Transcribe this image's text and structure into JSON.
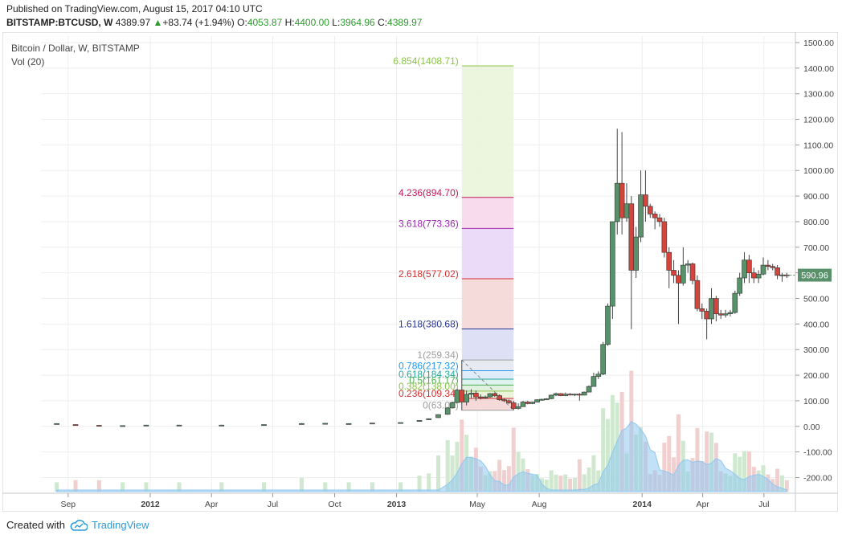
{
  "header": {
    "published": "Published on TradingView.com, August 15, 2017 04:10 UTC",
    "symbol": "BITSTAMP:BTCUSD, W",
    "price": "4389.97",
    "change_arrow": "▲",
    "change": "+83.74 (+1.94%)",
    "o_label": "O:",
    "o_value": "4053.87",
    "h_label": "H:",
    "h_value": "4400.00",
    "l_label": "L:",
    "l_value": "3964.96",
    "c_label": "C:",
    "c_value": "4389.97"
  },
  "legend": {
    "title": "Bitcoin / Dollar, W, BITSTAMP",
    "volume": "Vol (20)"
  },
  "last_price_tag": "590.96",
  "footer": {
    "created_with": "Created with",
    "brand": "TradingView"
  },
  "colors": {
    "up": "#58916a",
    "down": "#d3453c",
    "vol_up": "#cfe8cf",
    "vol_down": "#f2cfcf",
    "vol_ma": "#90c8f0",
    "axis_text": "#444444",
    "grid": "#eeeeee"
  },
  "chart_data": {
    "type": "candlestick",
    "title": "Bitcoin / Dollar, W, BITSTAMP",
    "y_axis": {
      "ticks": [
        1500,
        1400,
        1300,
        1200,
        1100,
        1000,
        900,
        800,
        700,
        600,
        500,
        400,
        300,
        200,
        100,
        0,
        -100,
        -200
      ],
      "tick_labels": [
        "1500.00",
        "1400.00",
        "1300.00",
        "1200.00",
        "1100.00",
        "1000.00",
        "900.00",
        "800.00",
        "700.00",
        "600.00",
        "500.00",
        "400.00",
        "300.00",
        "200.00",
        "100.00",
        "0.00",
        "-100.00",
        "-200.00"
      ],
      "range": [
        -255,
        1525
      ]
    },
    "x_axis": {
      "ticks": [
        {
          "label": "Sep",
          "date": "2011-09-01"
        },
        {
          "label": "2012",
          "date": "2012-01-01"
        },
        {
          "label": "Apr",
          "date": "2012-04-01"
        },
        {
          "label": "Jul",
          "date": "2012-07-01"
        },
        {
          "label": "Oct",
          "date": "2012-10-01"
        },
        {
          "label": "2013",
          "date": "2013-01-01"
        },
        {
          "label": "May",
          "date": "2013-05-01"
        },
        {
          "label": "Aug",
          "date": "2013-08-01"
        },
        {
          "label": "2014",
          "date": "2014-01-01"
        },
        {
          "label": "Apr",
          "date": "2014-04-01"
        },
        {
          "label": "Jul",
          "date": "2014-07-01"
        }
      ]
    },
    "fib_extension": {
      "start_date": "2013-04-08",
      "end_date": "2013-06-24",
      "levels": [
        {
          "label": "6.854(1408.71)",
          "value": 1408.71,
          "color": "#8bc34a",
          "fill": "#e9f5d8"
        },
        {
          "label": "4.236(894.70)",
          "value": 894.7,
          "color": "#c2185b",
          "fill": "#f7d6ea"
        },
        {
          "label": "3.618(773.36)",
          "value": 773.36,
          "color": "#9c27b0",
          "fill": "#e9d5f7"
        },
        {
          "label": "2.618(577.02)",
          "value": 577.02,
          "color": "#d32f2f",
          "fill": "#f5d5d5"
        },
        {
          "label": "1.618(380.68)",
          "value": 380.68,
          "color": "#283593",
          "fill": "#d8dcf5"
        },
        {
          "label": "1(259.34)",
          "value": 259.34,
          "color": "#9e9e9e",
          "fill": "#e3e6ee"
        },
        {
          "label": "0.786(217.32)",
          "value": 217.32,
          "color": "#2196f3",
          "fill": "#dbeaf7"
        },
        {
          "label": "0.618(184.34)",
          "value": 184.34,
          "color": "#26a69a",
          "fill": "#d8f0ec"
        },
        {
          "label": "0.5(161.17)",
          "value": 161.17,
          "color": "#4caf50",
          "fill": "#daf0d9"
        },
        {
          "label": "0.382(138.00)",
          "value": 138.0,
          "color": "#8bc34a",
          "fill": "#e6f2d4"
        },
        {
          "label": "0.236(109.34)",
          "value": 109.34,
          "color": "#d32f2f",
          "fill": "#f5d3d3"
        },
        {
          "label": "0(63.00)",
          "value": 63.0,
          "color": "#9e9e9e",
          "fill": "none"
        }
      ]
    },
    "candles": [
      {
        "date": "2011-08-15",
        "o": 11,
        "h": 12,
        "l": 10,
        "c": 11
      },
      {
        "date": "2011-09-12",
        "o": 7,
        "h": 8,
        "l": 5,
        "c": 6
      },
      {
        "date": "2011-10-17",
        "o": 4,
        "h": 5,
        "l": 2,
        "c": 3
      },
      {
        "date": "2011-11-21",
        "o": 3,
        "h": 4,
        "l": 2,
        "c": 3
      },
      {
        "date": "2011-12-26",
        "o": 4,
        "h": 5,
        "l": 3,
        "c": 5
      },
      {
        "date": "2012-02-13",
        "o": 5,
        "h": 6,
        "l": 4,
        "c": 5
      },
      {
        "date": "2012-04-16",
        "o": 5,
        "h": 6,
        "l": 4,
        "c": 5
      },
      {
        "date": "2012-06-18",
        "o": 6,
        "h": 7,
        "l": 5,
        "c": 7
      },
      {
        "date": "2012-08-13",
        "o": 10,
        "h": 13,
        "l": 9,
        "c": 11
      },
      {
        "date": "2012-09-17",
        "o": 12,
        "h": 13,
        "l": 11,
        "c": 12
      },
      {
        "date": "2012-10-22",
        "o": 11,
        "h": 12,
        "l": 10,
        "c": 11
      },
      {
        "date": "2012-11-26",
        "o": 12,
        "h": 13,
        "l": 11,
        "c": 13
      },
      {
        "date": "2013-01-07",
        "o": 13,
        "h": 15,
        "l": 13,
        "c": 15
      },
      {
        "date": "2013-02-04",
        "o": 20,
        "h": 24,
        "l": 19,
        "c": 23
      },
      {
        "date": "2013-02-18",
        "o": 26,
        "h": 31,
        "l": 25,
        "c": 30
      },
      {
        "date": "2013-03-04",
        "o": 34,
        "h": 47,
        "l": 33,
        "c": 46
      },
      {
        "date": "2013-03-18",
        "o": 47,
        "h": 75,
        "l": 45,
        "c": 72
      },
      {
        "date": "2013-03-25",
        "o": 72,
        "h": 96,
        "l": 70,
        "c": 93
      },
      {
        "date": "2013-04-01",
        "o": 93,
        "h": 147,
        "l": 90,
        "c": 142
      },
      {
        "date": "2013-04-08",
        "o": 142,
        "h": 259.34,
        "l": 63,
        "c": 95
      },
      {
        "date": "2013-04-15",
        "o": 95,
        "h": 140,
        "l": 82,
        "c": 125
      },
      {
        "date": "2013-04-22",
        "o": 125,
        "h": 145,
        "l": 110,
        "c": 130
      },
      {
        "date": "2013-04-29",
        "o": 130,
        "h": 140,
        "l": 100,
        "c": 115
      },
      {
        "date": "2013-05-06",
        "o": 115,
        "h": 125,
        "l": 105,
        "c": 112
      },
      {
        "date": "2013-05-13",
        "o": 112,
        "h": 120,
        "l": 108,
        "c": 115
      },
      {
        "date": "2013-05-20",
        "o": 115,
        "h": 130,
        "l": 112,
        "c": 128
      },
      {
        "date": "2013-05-27",
        "o": 128,
        "h": 132,
        "l": 115,
        "c": 120
      },
      {
        "date": "2013-06-03",
        "o": 120,
        "h": 125,
        "l": 100,
        "c": 104
      },
      {
        "date": "2013-06-10",
        "o": 104,
        "h": 110,
        "l": 95,
        "c": 100
      },
      {
        "date": "2013-06-17",
        "o": 100,
        "h": 105,
        "l": 88,
        "c": 92
      },
      {
        "date": "2013-06-24",
        "o": 92,
        "h": 100,
        "l": 63,
        "c": 70
      },
      {
        "date": "2013-07-01",
        "o": 70,
        "h": 90,
        "l": 66,
        "c": 77
      },
      {
        "date": "2013-07-08",
        "o": 77,
        "h": 100,
        "l": 76,
        "c": 95
      },
      {
        "date": "2013-07-15",
        "o": 95,
        "h": 100,
        "l": 86,
        "c": 89
      },
      {
        "date": "2013-07-22",
        "o": 89,
        "h": 97,
        "l": 87,
        "c": 95
      },
      {
        "date": "2013-07-29",
        "o": 95,
        "h": 106,
        "l": 94,
        "c": 104
      },
      {
        "date": "2013-08-05",
        "o": 104,
        "h": 108,
        "l": 100,
        "c": 106
      },
      {
        "date": "2013-08-12",
        "o": 106,
        "h": 110,
        "l": 103,
        "c": 108
      },
      {
        "date": "2013-08-19",
        "o": 108,
        "h": 124,
        "l": 106,
        "c": 122
      },
      {
        "date": "2013-08-26",
        "o": 122,
        "h": 132,
        "l": 118,
        "c": 128
      },
      {
        "date": "2013-09-02",
        "o": 128,
        "h": 130,
        "l": 118,
        "c": 120
      },
      {
        "date": "2013-09-09",
        "o": 120,
        "h": 132,
        "l": 118,
        "c": 126
      },
      {
        "date": "2013-09-16",
        "o": 126,
        "h": 130,
        "l": 121,
        "c": 124
      },
      {
        "date": "2013-09-23",
        "o": 124,
        "h": 128,
        "l": 118,
        "c": 126
      },
      {
        "date": "2013-09-30",
        "o": 126,
        "h": 130,
        "l": 100,
        "c": 122
      },
      {
        "date": "2013-10-07",
        "o": 122,
        "h": 136,
        "l": 121,
        "c": 134
      },
      {
        "date": "2013-10-14",
        "o": 134,
        "h": 160,
        "l": 133,
        "c": 156
      },
      {
        "date": "2013-10-21",
        "o": 156,
        "h": 210,
        "l": 155,
        "c": 195
      },
      {
        "date": "2013-10-28",
        "o": 195,
        "h": 215,
        "l": 185,
        "c": 204
      },
      {
        "date": "2013-11-04",
        "o": 204,
        "h": 330,
        "l": 200,
        "c": 320
      },
      {
        "date": "2013-11-11",
        "o": 320,
        "h": 480,
        "l": 315,
        "c": 470
      },
      {
        "date": "2013-11-18",
        "o": 470,
        "h": 800,
        "l": 420,
        "c": 800
      },
      {
        "date": "2013-11-25",
        "o": 800,
        "h": 1163,
        "l": 750,
        "c": 950
      },
      {
        "date": "2013-12-02",
        "o": 950,
        "h": 1150,
        "l": 750,
        "c": 815
      },
      {
        "date": "2013-12-09",
        "o": 815,
        "h": 950,
        "l": 800,
        "c": 870
      },
      {
        "date": "2013-12-16",
        "o": 870,
        "h": 900,
        "l": 380,
        "c": 610
      },
      {
        "date": "2013-12-23",
        "o": 610,
        "h": 780,
        "l": 580,
        "c": 740
      },
      {
        "date": "2013-12-30",
        "o": 740,
        "h": 1000,
        "l": 720,
        "c": 905
      },
      {
        "date": "2014-01-06",
        "o": 905,
        "h": 1000,
        "l": 800,
        "c": 860
      },
      {
        "date": "2014-01-13",
        "o": 860,
        "h": 870,
        "l": 815,
        "c": 830
      },
      {
        "date": "2014-01-20",
        "o": 830,
        "h": 840,
        "l": 770,
        "c": 815
      },
      {
        "date": "2014-01-27",
        "o": 815,
        "h": 830,
        "l": 780,
        "c": 800
      },
      {
        "date": "2014-02-03",
        "o": 800,
        "h": 815,
        "l": 660,
        "c": 680
      },
      {
        "date": "2014-02-10",
        "o": 680,
        "h": 700,
        "l": 540,
        "c": 610
      },
      {
        "date": "2014-02-17",
        "o": 610,
        "h": 650,
        "l": 560,
        "c": 590
      },
      {
        "date": "2014-02-24",
        "o": 590,
        "h": 610,
        "l": 400,
        "c": 560
      },
      {
        "date": "2014-03-03",
        "o": 560,
        "h": 700,
        "l": 550,
        "c": 630
      },
      {
        "date": "2014-03-10",
        "o": 630,
        "h": 650,
        "l": 600,
        "c": 635
      },
      {
        "date": "2014-03-17",
        "o": 635,
        "h": 640,
        "l": 555,
        "c": 570
      },
      {
        "date": "2014-03-24",
        "o": 570,
        "h": 590,
        "l": 450,
        "c": 460
      },
      {
        "date": "2014-03-31",
        "o": 460,
        "h": 480,
        "l": 420,
        "c": 450
      },
      {
        "date": "2014-04-07",
        "o": 450,
        "h": 460,
        "l": 340,
        "c": 420
      },
      {
        "date": "2014-04-14",
        "o": 420,
        "h": 540,
        "l": 400,
        "c": 500
      },
      {
        "date": "2014-04-21",
        "o": 500,
        "h": 510,
        "l": 410,
        "c": 440
      },
      {
        "date": "2014-04-28",
        "o": 440,
        "h": 455,
        "l": 420,
        "c": 435
      },
      {
        "date": "2014-05-05",
        "o": 435,
        "h": 455,
        "l": 425,
        "c": 440
      },
      {
        "date": "2014-05-12",
        "o": 440,
        "h": 455,
        "l": 430,
        "c": 445
      },
      {
        "date": "2014-05-19",
        "o": 445,
        "h": 530,
        "l": 440,
        "c": 520
      },
      {
        "date": "2014-05-26",
        "o": 520,
        "h": 600,
        "l": 510,
        "c": 580
      },
      {
        "date": "2014-06-02",
        "o": 580,
        "h": 680,
        "l": 560,
        "c": 650
      },
      {
        "date": "2014-06-09",
        "o": 650,
        "h": 670,
        "l": 560,
        "c": 600
      },
      {
        "date": "2014-06-16",
        "o": 600,
        "h": 620,
        "l": 560,
        "c": 580
      },
      {
        "date": "2014-06-23",
        "o": 580,
        "h": 610,
        "l": 560,
        "c": 595
      },
      {
        "date": "2014-06-30",
        "o": 595,
        "h": 660,
        "l": 590,
        "c": 630
      },
      {
        "date": "2014-07-07",
        "o": 630,
        "h": 650,
        "l": 610,
        "c": 625
      },
      {
        "date": "2014-07-14",
        "o": 625,
        "h": 635,
        "l": 610,
        "c": 620
      },
      {
        "date": "2014-07-21",
        "o": 620,
        "h": 630,
        "l": 575,
        "c": 590
      },
      {
        "date": "2014-07-28",
        "o": 590,
        "h": 600,
        "l": 565,
        "c": 592
      },
      {
        "date": "2014-08-04",
        "o": 592,
        "h": 600,
        "l": 580,
        "c": 590.96
      }
    ]
  }
}
